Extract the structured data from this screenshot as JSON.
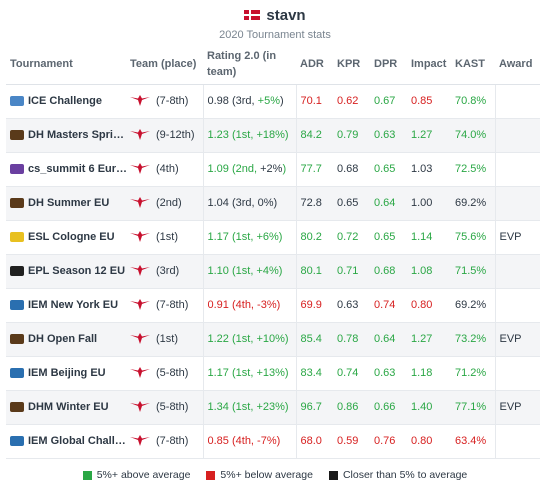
{
  "header": {
    "player_name": "stavn",
    "subtitle": "2020 Tournament stats"
  },
  "columns": {
    "tournament": "Tournament",
    "team": "Team (place)",
    "rating": "Rating 2.0 (in team)",
    "adr": "ADR",
    "kpr": "KPR",
    "dpr": "DPR",
    "impact": "Impact",
    "kast": "KAST",
    "award": "Award"
  },
  "colors": {
    "good": "#2aa745",
    "bad": "#d72020",
    "neutral": "#2d3844"
  },
  "rows": [
    {
      "tournament": "ICE Challenge",
      "icon": "ice-challenge-icon",
      "icon_color": "#4a86c6",
      "place": "(7-8th)",
      "rating": "0.98",
      "rating_note": " (3rd, ",
      "rating_delta": "+5%",
      "rating_close": ")",
      "rating_class": "neutral",
      "delta_class": "good",
      "adr": "70.1",
      "adr_class": "bad",
      "kpr": "0.62",
      "kpr_class": "bad",
      "dpr": "0.67",
      "dpr_class": "good",
      "impact": "0.85",
      "impact_class": "bad",
      "kast": "70.8%",
      "kast_class": "good",
      "award": ""
    },
    {
      "tournament": "DH Masters Spri…",
      "icon": "dreamhack-icon",
      "icon_color": "#5a3a1a",
      "place": "(9-12th)",
      "rating": "1.23",
      "rating_note": " (1st, ",
      "rating_delta": "+18%",
      "rating_close": ")",
      "rating_class": "good",
      "delta_class": "good",
      "adr": "84.2",
      "adr_class": "good",
      "kpr": "0.79",
      "kpr_class": "good",
      "dpr": "0.63",
      "dpr_class": "good",
      "impact": "1.27",
      "impact_class": "good",
      "kast": "74.0%",
      "kast_class": "good",
      "award": ""
    },
    {
      "tournament": "cs_summit 6 Eur…",
      "icon": "cs-summit-icon",
      "icon_color": "#6a3fa0",
      "place": "(4th)",
      "rating": "1.09",
      "rating_note": " (2nd, ",
      "rating_delta": "+2%",
      "rating_close": ")",
      "rating_class": "good",
      "delta_class": "neutral",
      "adr": "77.7",
      "adr_class": "good",
      "kpr": "0.68",
      "kpr_class": "neutral",
      "dpr": "0.65",
      "dpr_class": "good",
      "impact": "1.03",
      "impact_class": "neutral",
      "kast": "72.5%",
      "kast_class": "good",
      "award": ""
    },
    {
      "tournament": "DH Summer EU",
      "icon": "dreamhack-icon",
      "icon_color": "#5a3a1a",
      "place": "(2nd)",
      "rating": "1.04",
      "rating_note": " (3rd, 0%)",
      "rating_delta": "",
      "rating_close": "",
      "rating_class": "neutral",
      "delta_class": "neutral",
      "adr": "72.8",
      "adr_class": "neutral",
      "kpr": "0.65",
      "kpr_class": "neutral",
      "dpr": "0.64",
      "dpr_class": "good",
      "impact": "1.00",
      "impact_class": "neutral",
      "kast": "69.2%",
      "kast_class": "neutral",
      "award": ""
    },
    {
      "tournament": "ESL Cologne EU",
      "icon": "esl-cologne-icon",
      "icon_color": "#e8c020",
      "place": "(1st)",
      "rating": "1.17",
      "rating_note": " (1st, ",
      "rating_delta": "+6%",
      "rating_close": ")",
      "rating_class": "good",
      "delta_class": "good",
      "adr": "80.2",
      "adr_class": "good",
      "kpr": "0.72",
      "kpr_class": "good",
      "dpr": "0.65",
      "dpr_class": "good",
      "impact": "1.14",
      "impact_class": "good",
      "kast": "75.6%",
      "kast_class": "good",
      "award": "EVP"
    },
    {
      "tournament": "EPL Season 12 EU",
      "icon": "epl-icon",
      "icon_color": "#202020",
      "place": "(3rd)",
      "rating": "1.10",
      "rating_note": " (1st, +4%)",
      "rating_delta": "",
      "rating_close": "",
      "rating_class": "good",
      "delta_class": "neutral",
      "adr": "80.1",
      "adr_class": "good",
      "kpr": "0.71",
      "kpr_class": "good",
      "dpr": "0.68",
      "dpr_class": "good",
      "impact": "1.08",
      "impact_class": "good",
      "kast": "71.5%",
      "kast_class": "good",
      "award": ""
    },
    {
      "tournament": "IEM New York EU",
      "icon": "iem-icon",
      "icon_color": "#2a6fb0",
      "place": "(7-8th)",
      "rating": "0.91",
      "rating_note": " (4th, -3%)",
      "rating_delta": "",
      "rating_close": "",
      "rating_class": "bad",
      "delta_class": "neutral",
      "adr": "69.9",
      "adr_class": "bad",
      "kpr": "0.63",
      "kpr_class": "neutral",
      "dpr": "0.74",
      "dpr_class": "bad",
      "impact": "0.80",
      "impact_class": "bad",
      "kast": "69.2%",
      "kast_class": "neutral",
      "award": ""
    },
    {
      "tournament": "DH Open Fall",
      "icon": "dreamhack-icon",
      "icon_color": "#5a3a1a",
      "place": "(1st)",
      "rating": "1.22",
      "rating_note": " (1st, ",
      "rating_delta": "+10%",
      "rating_close": ")",
      "rating_class": "good",
      "delta_class": "good",
      "adr": "85.4",
      "adr_class": "good",
      "kpr": "0.78",
      "kpr_class": "good",
      "dpr": "0.64",
      "dpr_class": "good",
      "impact": "1.27",
      "impact_class": "good",
      "kast": "73.2%",
      "kast_class": "good",
      "award": "EVP"
    },
    {
      "tournament": "IEM Beijing EU",
      "icon": "iem-icon",
      "icon_color": "#2a6fb0",
      "place": "(5-8th)",
      "rating": "1.17",
      "rating_note": " (1st, ",
      "rating_delta": "+13%",
      "rating_close": ")",
      "rating_class": "good",
      "delta_class": "good",
      "adr": "83.4",
      "adr_class": "good",
      "kpr": "0.74",
      "kpr_class": "good",
      "dpr": "0.63",
      "dpr_class": "good",
      "impact": "1.18",
      "impact_class": "good",
      "kast": "71.2%",
      "kast_class": "good",
      "award": ""
    },
    {
      "tournament": "DHM Winter EU",
      "icon": "dreamhack-icon",
      "icon_color": "#5a3a1a",
      "place": "(5-8th)",
      "rating": "1.34",
      "rating_note": " (1st, ",
      "rating_delta": "+23%",
      "rating_close": ")",
      "rating_class": "good",
      "delta_class": "good",
      "adr": "96.7",
      "adr_class": "good",
      "kpr": "0.86",
      "kpr_class": "good",
      "dpr": "0.66",
      "dpr_class": "good",
      "impact": "1.40",
      "impact_class": "good",
      "kast": "77.1%",
      "kast_class": "good",
      "award": "EVP"
    },
    {
      "tournament": "IEM Global Chall…",
      "icon": "iem-icon",
      "icon_color": "#2a6fb0",
      "place": "(7-8th)",
      "rating": "0.85",
      "rating_note": " (4th, ",
      "rating_delta": "-7%",
      "rating_close": ")",
      "rating_class": "bad",
      "delta_class": "bad",
      "adr": "68.0",
      "adr_class": "bad",
      "kpr": "0.59",
      "kpr_class": "bad",
      "dpr": "0.76",
      "dpr_class": "bad",
      "impact": "0.80",
      "impact_class": "bad",
      "kast": "63.4%",
      "kast_class": "bad",
      "award": ""
    }
  ],
  "legend": [
    {
      "label": "5%+ above average",
      "color": "#2aa745"
    },
    {
      "label": "5%+ below average",
      "color": "#d72020"
    },
    {
      "label": "Closer than 5% to average",
      "color": "#1a1a1a"
    }
  ]
}
